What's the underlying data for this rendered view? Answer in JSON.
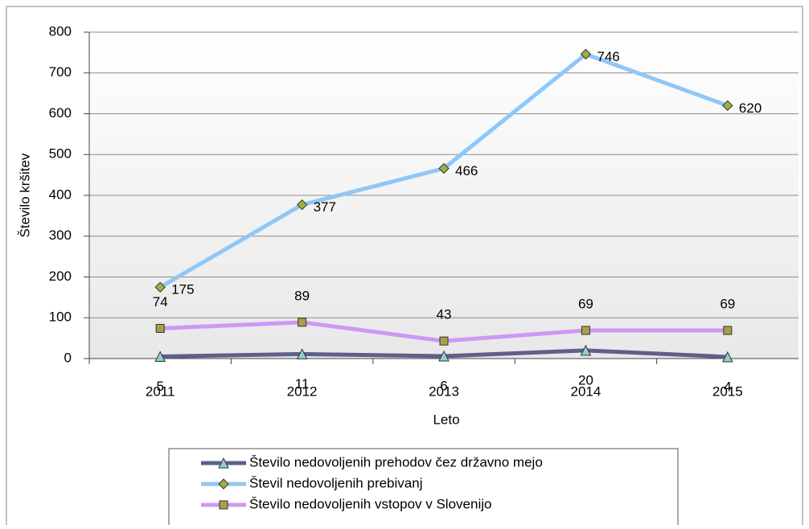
{
  "chart_data": {
    "type": "line",
    "xlabel": "Leto",
    "ylabel": "Število kršitev",
    "categories": [
      "2011",
      "2012",
      "2013",
      "2014",
      "2015"
    ],
    "series": [
      {
        "name": "Število nedovoljenih prehodov čez državno mejo",
        "color": "#5f5f8c",
        "marker": "triangle",
        "values": [
          5,
          11,
          6,
          20,
          4
        ]
      },
      {
        "name": "Števil nedovoljenih prebivanj",
        "color": "#8fc7f7",
        "marker": "diamond",
        "values": [
          175,
          377,
          466,
          746,
          620
        ]
      },
      {
        "name": "Število nedovoljenih vstopov v Slovenijo",
        "color": "#cc99f5",
        "marker": "square",
        "values": [
          74,
          89,
          43,
          69,
          69
        ]
      }
    ],
    "ylim": [
      0,
      800
    ],
    "yticks": [
      0,
      100,
      200,
      300,
      400,
      500,
      600,
      700,
      800
    ],
    "grid": true,
    "legend": "bottom"
  }
}
